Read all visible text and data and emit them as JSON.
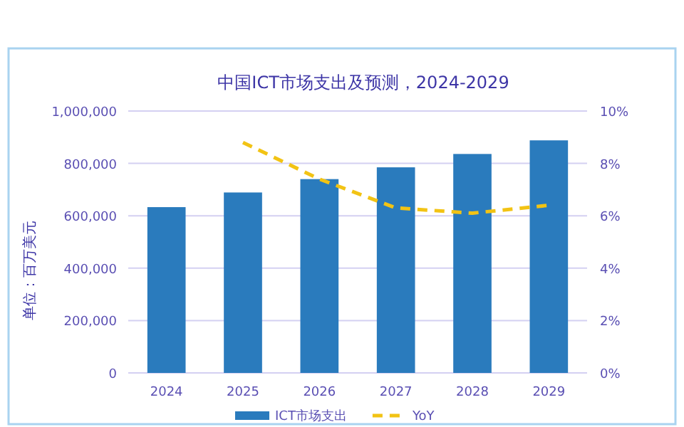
{
  "chart_data": {
    "type": "bar",
    "title": "中国ICT市场支出及预测，2024-2029",
    "ylabel": "单位：百万美元",
    "categories": [
      "2024",
      "2025",
      "2026",
      "2027",
      "2028",
      "2029"
    ],
    "series": [
      {
        "name": "ICT市场支出",
        "color": "#2a7bbd",
        "values": [
          633000,
          689000,
          740000,
          785000,
          836000,
          888000
        ]
      },
      {
        "name": "YoY",
        "type": "line",
        "axis": "y2",
        "color": "#f2c314",
        "line_style": "dashed",
        "marker": "none",
        "values": [
          null,
          8.8,
          7.4,
          6.3,
          6.1,
          6.4
        ]
      }
    ],
    "ylim": [
      0,
      1000000
    ],
    "yticks": [
      {
        "value": 0,
        "label": "0"
      },
      {
        "value": 200000,
        "label": "200,000"
      },
      {
        "value": 400000,
        "label": "400,000"
      },
      {
        "value": 600000,
        "label": "600,000"
      },
      {
        "value": 800000,
        "label": "800,000"
      },
      {
        "value": 1000000,
        "label": "1,000,000"
      }
    ],
    "y2lim": [
      0,
      10
    ],
    "y2ticks": [
      {
        "value": 0,
        "label": "0%"
      },
      {
        "value": 2,
        "label": "2%"
      },
      {
        "value": 4,
        "label": "4%"
      },
      {
        "value": 6,
        "label": "6%"
      },
      {
        "value": 8,
        "label": "8%"
      },
      {
        "value": 10,
        "label": "10%"
      }
    ],
    "grid": "y",
    "legend": "bottom"
  }
}
